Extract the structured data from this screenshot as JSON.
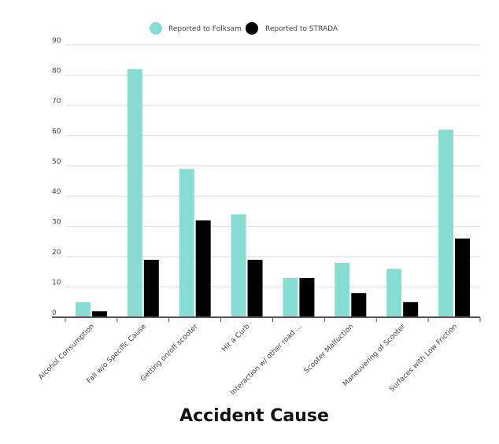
{
  "chart_data": {
    "type": "bar",
    "title": "",
    "xlabel": "Accident Cause",
    "ylabel": "",
    "ylim": [
      0,
      90
    ],
    "yticks": [
      0,
      10,
      20,
      30,
      40,
      50,
      60,
      70,
      80,
      90
    ],
    "grid": true,
    "legend_position": "top",
    "categories": [
      "Alcohol Consumption",
      "Fall w/o Specific Cause",
      "Getting on/off scooter",
      "Hit a Curb",
      "Interaction w/ other road ...",
      "Scooter Malfuction",
      "Maneuvering of Scooter",
      "Surfaces with Low Friction"
    ],
    "series": [
      {
        "name": "Reported to Folksam",
        "color": "#88ddd2",
        "values": [
          5,
          82,
          49,
          34,
          13,
          18,
          16,
          62
        ]
      },
      {
        "name": "Reported to STRADA",
        "color": "#000000",
        "values": [
          2,
          19,
          32,
          19,
          13,
          8,
          5,
          26
        ]
      }
    ]
  }
}
